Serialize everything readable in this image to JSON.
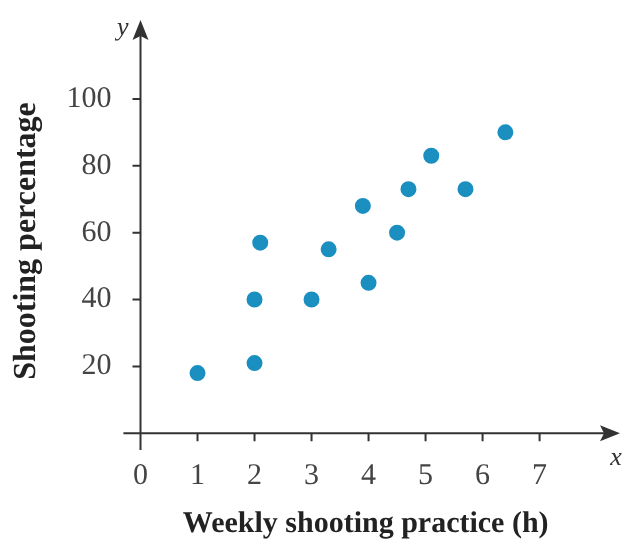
{
  "chart_data": {
    "type": "scatter",
    "xlabel": "Weekly shooting practice (h)",
    "ylabel": "Shooting percentage",
    "x": [
      1,
      2,
      2,
      2.1,
      3,
      3.3,
      3.9,
      4,
      4.5,
      4.7,
      5.1,
      5.7,
      6.4
    ],
    "series": [
      {
        "color": "#1a8fc0",
        "values": [
          18,
          21,
          40,
          57,
          40,
          55,
          68,
          45,
          60,
          73,
          83,
          73,
          90
        ]
      }
    ],
    "xlim": [
      -0.3,
      8.2
    ],
    "ylim": [
      -5,
      120
    ],
    "xticks": [
      0,
      1,
      2,
      3,
      4,
      5,
      6,
      7
    ],
    "yticks": [
      20,
      40,
      60,
      80,
      100
    ],
    "annotations": [
      "x",
      "y"
    ],
    "marker": "circle",
    "grid": false,
    "legend": false
  }
}
